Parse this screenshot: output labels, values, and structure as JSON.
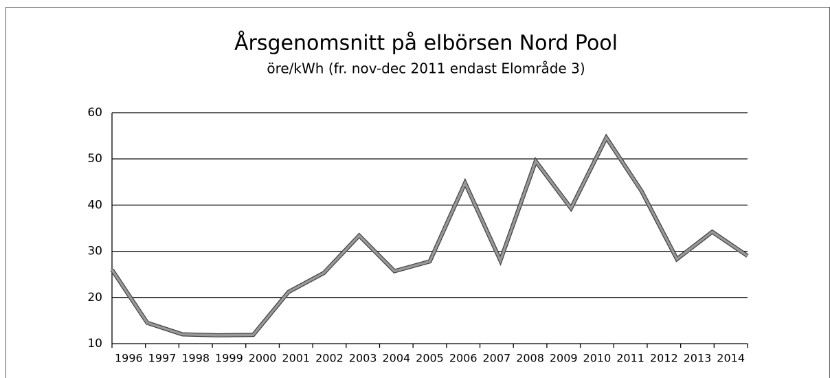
{
  "chart_data": {
    "type": "line",
    "title": "Årsgenomsnitt på elbörsen Nord Pool",
    "subtitle": "öre/kWh (fr. nov-dec 2011 endast Elområde 3)",
    "categories": [
      "1996",
      "1997",
      "1998",
      "1999",
      "2000",
      "2001",
      "2002",
      "2003",
      "2004",
      "2005",
      "2006",
      "2007",
      "2008",
      "2009",
      "2010",
      "2011",
      "2012",
      "2013",
      "2014"
    ],
    "series": [
      {
        "name": "Årsgenomsnitt",
        "color": "#999999",
        "values": [
          26,
          14.5,
          12,
          11.8,
          11.9,
          21.2,
          25.3,
          33.4,
          25.7,
          27.8,
          44.8,
          28.0,
          49.5,
          39.3,
          54.6,
          43.0,
          28.3,
          34.2,
          29.0
        ]
      }
    ],
    "ylim": [
      10,
      60
    ],
    "yticks": [
      10,
      20,
      30,
      40,
      50,
      60
    ],
    "grid": true
  }
}
